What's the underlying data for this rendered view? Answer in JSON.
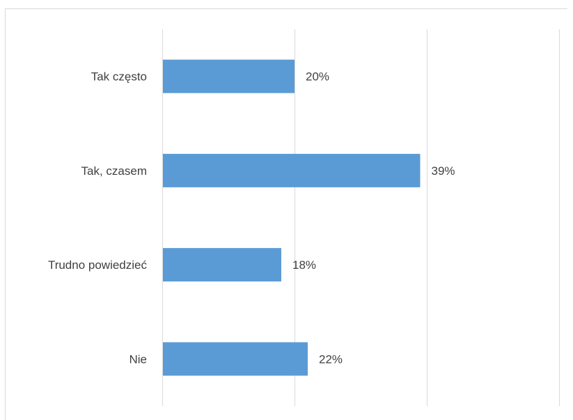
{
  "chart_data": {
    "type": "bar",
    "orientation": "horizontal",
    "categories": [
      "Tak często",
      "Tak, czasem",
      "Trudno powiedzieć",
      "Nie"
    ],
    "values": [
      20,
      39,
      18,
      22
    ],
    "value_labels": [
      "20%",
      "39%",
      "18%",
      "22%"
    ],
    "unit": "%",
    "xlim": [
      0,
      60
    ],
    "grid": true,
    "legend": "none",
    "bar_color": "#5b9bd5",
    "grid_color": "#d9d9d9",
    "text_color": "#404040"
  }
}
